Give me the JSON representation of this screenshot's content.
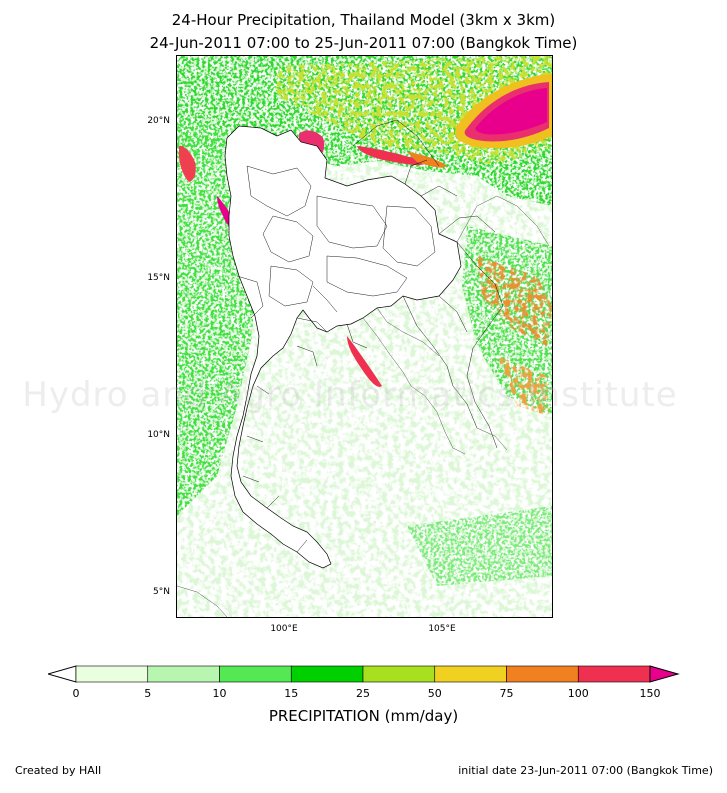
{
  "title": {
    "line1": "24-Hour Precipitation, Thailand Model (3km x 3km)",
    "line2": "24-Jun-2011 07:00 to 25-Jun-2011 07:00 (Bangkok Time)"
  },
  "map": {
    "lat_ticks": [
      {
        "value": 20,
        "label": "20°N"
      },
      {
        "value": 15,
        "label": "15°N"
      },
      {
        "value": 10,
        "label": "10°N"
      },
      {
        "value": 5,
        "label": "5°N"
      }
    ],
    "lon_ticks": [
      {
        "value": 100,
        "label": "100°E"
      },
      {
        "value": 105,
        "label": "105°E"
      }
    ],
    "lat_range": [
      4.3,
      22.1
    ],
    "lon_range": [
      96.6,
      108.5
    ],
    "watermark": "Hydro and Agro Informatics Institute"
  },
  "colorbar": {
    "title": "PRECIPITATION (mm/day)",
    "ticks": [
      "0",
      "5",
      "10",
      "15",
      "25",
      "50",
      "75",
      "100",
      "150"
    ],
    "colors": [
      "#e9ffe0",
      "#b8f5b0",
      "#55e855",
      "#00d000",
      "#a8e020",
      "#f0d020",
      "#f08020",
      "#f03050",
      "#e8008c"
    ]
  },
  "footer": {
    "left": "Created by HAII",
    "right": "initial date 23-Jun-2011 07:00 (Bangkok Time)"
  }
}
